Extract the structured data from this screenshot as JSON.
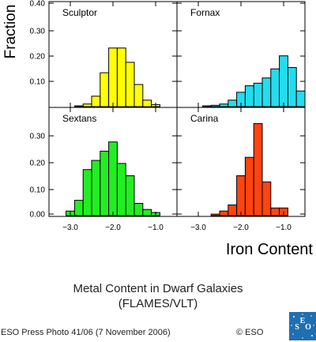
{
  "page": {
    "caption_line1": "Metal Content in Dwarf Galaxies",
    "caption_line2": "(FLAMES/VLT)",
    "credit": "ESO Press Photo 41/06 (7 November 2006)",
    "copyright": "© ESO",
    "logo_text": "ESO"
  },
  "chart_data": {
    "type": "bar",
    "layout": "2x2 histogram panels",
    "ylabel": "Fraction",
    "xlabel": "Iron Content",
    "x_ticks": [
      -3.0,
      -2.0,
      -1.0
    ],
    "x_tick_labels": [
      "−3.0",
      "−2.0",
      "−1.0"
    ],
    "xlim": [
      -3.5,
      -0.5
    ],
    "bin_width": 0.2,
    "panels": [
      {
        "name": "Sculptor",
        "color": "#ffff00",
        "ylim": [
          0,
          0.4
        ],
        "y_ticks": [
          0.1,
          0.2,
          0.3,
          0.4
        ],
        "y_tick_labels": [
          "0.10",
          "0.20",
          "0.30",
          "0.40"
        ],
        "bin_starts": [
          -2.9,
          -2.7,
          -2.5,
          -2.3,
          -2.1,
          -1.9,
          -1.7,
          -1.5,
          -1.3,
          -1.1
        ],
        "values": [
          0.003,
          0.01,
          0.04,
          0.13,
          0.225,
          0.225,
          0.17,
          0.085,
          0.025,
          0.008
        ]
      },
      {
        "name": "Fornax",
        "color": "#22ddee",
        "ylim": [
          0,
          0.4
        ],
        "y_ticks": [
          0.1,
          0.2,
          0.3,
          0.4
        ],
        "y_tick_labels": [
          "0.10",
          "0.20",
          "0.30",
          "0.40"
        ],
        "bin_starts": [
          -2.9,
          -2.7,
          -2.5,
          -2.3,
          -2.1,
          -1.9,
          -1.7,
          -1.5,
          -1.3,
          -1.1,
          -0.9,
          -0.7
        ],
        "values": [
          0.003,
          0.005,
          0.01,
          0.025,
          0.055,
          0.08,
          0.09,
          0.11,
          0.145,
          0.195,
          0.15,
          0.06
        ]
      },
      {
        "name": "Sextans",
        "color": "#22ee22",
        "ylim": [
          0,
          0.35
        ],
        "y_ticks": [
          0.0,
          0.1,
          0.2,
          0.3
        ],
        "y_tick_labels": [
          "0.00",
          "0.10",
          "0.20",
          "0.30"
        ],
        "bin_starts": [
          -3.1,
          -2.9,
          -2.7,
          -2.5,
          -2.3,
          -2.1,
          -1.9,
          -1.7,
          -1.5,
          -1.3,
          -1.1
        ],
        "values": [
          0.015,
          0.05,
          0.15,
          0.18,
          0.21,
          0.24,
          0.17,
          0.13,
          0.04,
          0.02,
          0.01
        ]
      },
      {
        "name": "Carina",
        "color": "#ff4411",
        "ylim": [
          0,
          0.35
        ],
        "y_ticks": [
          0.0,
          0.1,
          0.2,
          0.3
        ],
        "y_tick_labels": [
          "0.00",
          "0.10",
          "0.20",
          "0.30"
        ],
        "bin_starts": [
          -2.7,
          -2.5,
          -2.3,
          -2.1,
          -1.9,
          -1.7,
          -1.5,
          -1.3,
          -1.1
        ],
        "values": [
          0.005,
          0.015,
          0.035,
          0.13,
          0.19,
          0.3,
          0.11,
          0.025,
          0.025
        ]
      }
    ],
    "grid": false,
    "legend": "none"
  }
}
